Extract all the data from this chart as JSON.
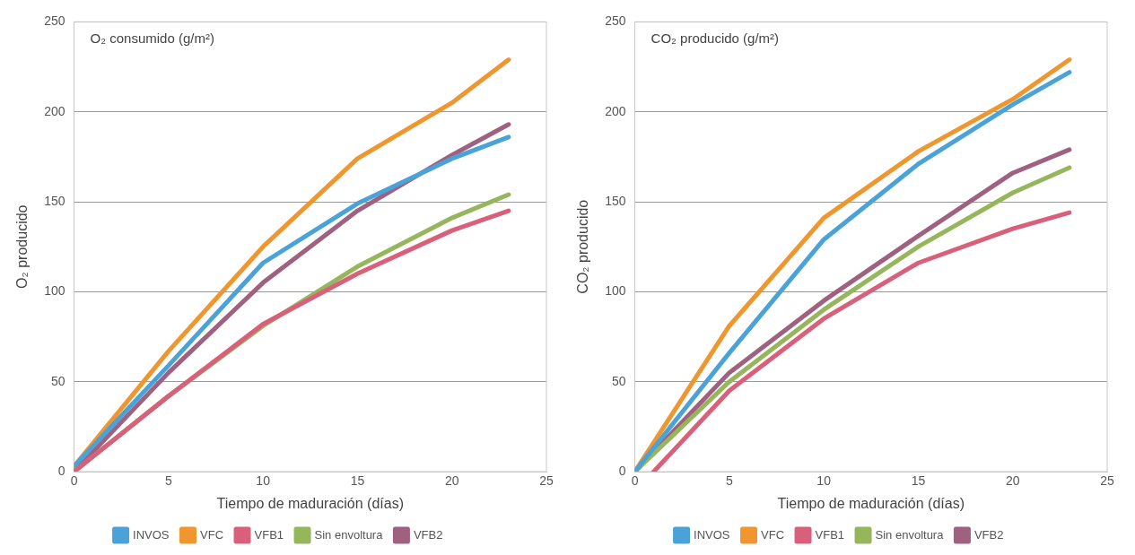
{
  "chart_data": [
    {
      "type": "line",
      "title": "O₂ consumido (g/m²)",
      "xlabel": "Tiempo de maduración (días)",
      "ylabel": "O₂ producido",
      "xlim": [
        0,
        25
      ],
      "xticks": [
        0,
        5,
        10,
        15,
        20,
        25
      ],
      "ylim": [
        0,
        250
      ],
      "yticks": [
        0,
        50,
        100,
        150,
        200,
        250
      ],
      "grid": "y",
      "legend": "bottom",
      "marker": "none",
      "line_style": "solid",
      "series": [
        {
          "name": "INVOS",
          "color": "#4aa3d8",
          "x": [
            0,
            5,
            10,
            15,
            20,
            23
          ],
          "values": [
            3,
            59,
            116,
            149,
            174,
            186
          ]
        },
        {
          "name": "VFC",
          "color": "#f0962e",
          "x": [
            0,
            5,
            10,
            15,
            20,
            23
          ],
          "values": [
            3,
            67,
            125,
            174,
            205,
            229
          ]
        },
        {
          "name": "VFB1",
          "color": "#d9607a",
          "x": [
            0,
            5,
            10,
            15,
            20,
            23
          ],
          "values": [
            0,
            42,
            82,
            110,
            134,
            145
          ]
        },
        {
          "name": "Sin envoltura",
          "color": "#95b65a",
          "x": [
            0,
            5,
            10,
            15,
            20,
            23
          ],
          "values": [
            0,
            42,
            81,
            114,
            141,
            154
          ]
        },
        {
          "name": "VFB2",
          "color": "#a0607f",
          "x": [
            0,
            5,
            10,
            15,
            20,
            23
          ],
          "values": [
            0,
            55,
            105,
            145,
            176,
            193
          ]
        }
      ]
    },
    {
      "type": "line",
      "title": "CO₂ producido (g/m²)",
      "xlabel": "Tiempo de maduración (días)",
      "ylabel": "CO₂ producido",
      "xlim": [
        0,
        25
      ],
      "xticks": [
        0,
        5,
        10,
        15,
        20,
        25
      ],
      "ylim": [
        0,
        250
      ],
      "yticks": [
        0,
        50,
        100,
        150,
        200,
        250
      ],
      "grid": "y",
      "legend": "bottom",
      "marker": "none",
      "line_style": "solid",
      "series": [
        {
          "name": "INVOS",
          "color": "#4aa3d8",
          "x": [
            0,
            5,
            10,
            15,
            20,
            23
          ],
          "values": [
            0,
            66,
            129,
            171,
            204,
            222
          ]
        },
        {
          "name": "VFC",
          "color": "#f0962e",
          "x": [
            0,
            5,
            10,
            15,
            20,
            23
          ],
          "values": [
            0,
            81,
            141,
            178,
            207,
            229
          ]
        },
        {
          "name": "VFB1",
          "color": "#d9607a",
          "x": [
            1,
            5,
            10,
            15,
            20,
            23
          ],
          "values": [
            0,
            45,
            85,
            116,
            135,
            144
          ]
        },
        {
          "name": "Sin envoltura",
          "color": "#95b65a",
          "x": [
            0,
            5,
            10,
            15,
            20,
            23
          ],
          "values": [
            0,
            50,
            90,
            125,
            155,
            169
          ]
        },
        {
          "name": "VFB2",
          "color": "#a0607f",
          "x": [
            0,
            5,
            10,
            15,
            20,
            23
          ],
          "values": [
            0,
            55,
            95,
            131,
            166,
            179
          ]
        }
      ]
    }
  ]
}
